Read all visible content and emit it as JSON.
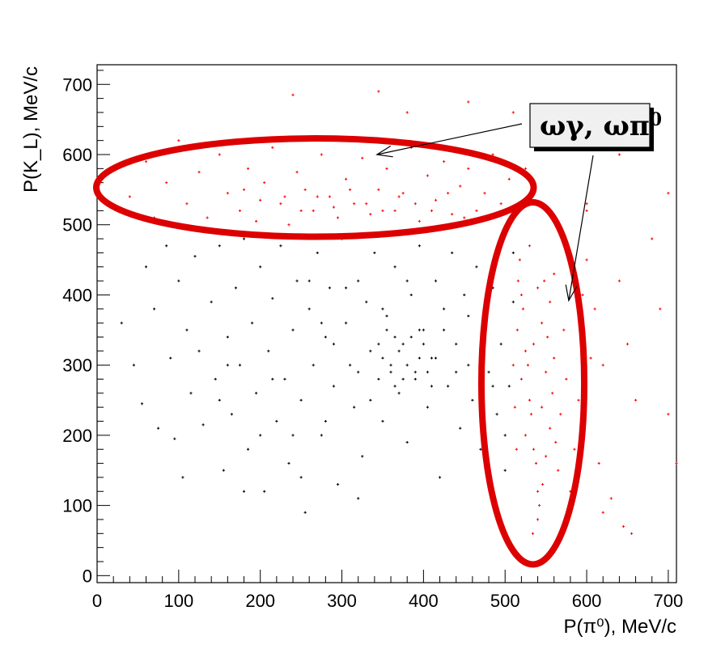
{
  "chart_data": {
    "type": "scatter",
    "xlabel": "P(π⁰), MeV/c",
    "ylabel": "P(K_L), MeV/c",
    "xlim": [
      0,
      710
    ],
    "ylim": [
      -10,
      728
    ],
    "x_ticks": [
      "0",
      "100",
      "200",
      "300",
      "400",
      "500",
      "600",
      "700"
    ],
    "y_ticks": [
      "0",
      "100",
      "200",
      "300",
      "400",
      "500",
      "600",
      "700"
    ],
    "grid": false,
    "series": [
      {
        "color": "#000000",
        "points": [
          [
            30,
            360
          ],
          [
            45,
            300
          ],
          [
            55,
            245
          ],
          [
            60,
            440
          ],
          [
            70,
            380
          ],
          [
            75,
            210
          ],
          [
            85,
            470
          ],
          [
            90,
            310
          ],
          [
            95,
            195
          ],
          [
            100,
            420
          ],
          [
            110,
            350
          ],
          [
            115,
            260
          ],
          [
            120,
            455
          ],
          [
            125,
            320
          ],
          [
            130,
            215
          ],
          [
            140,
            390
          ],
          [
            145,
            280
          ],
          [
            150,
            470
          ],
          [
            155,
            150
          ],
          [
            160,
            340
          ],
          [
            165,
            230
          ],
          [
            170,
            410
          ],
          [
            175,
            300
          ],
          [
            180,
            480
          ],
          [
            185,
            180
          ],
          [
            190,
            360
          ],
          [
            195,
            260
          ],
          [
            200,
            440
          ],
          [
            205,
            120
          ],
          [
            210,
            320
          ],
          [
            215,
            395
          ],
          [
            220,
            220
          ],
          [
            225,
            470
          ],
          [
            230,
            280
          ],
          [
            235,
            160
          ],
          [
            240,
            350
          ],
          [
            245,
            420
          ],
          [
            250,
            250
          ],
          [
            255,
            90
          ],
          [
            260,
            380
          ],
          [
            265,
            300
          ],
          [
            270,
            460
          ],
          [
            275,
            200
          ],
          [
            280,
            340
          ],
          [
            285,
            410
          ],
          [
            290,
            270
          ],
          [
            295,
            130
          ],
          [
            300,
            480
          ],
          [
            305,
            360
          ],
          [
            310,
            300
          ],
          [
            315,
            240
          ],
          [
            320,
            420
          ],
          [
            325,
            170
          ],
          [
            330,
            390
          ],
          [
            335,
            320
          ],
          [
            340,
            460
          ],
          [
            345,
            280
          ],
          [
            350,
            220
          ],
          [
            355,
            370
          ],
          [
            360,
            300
          ],
          [
            365,
            440
          ],
          [
            370,
            260
          ],
          [
            375,
            330
          ],
          [
            380,
            190
          ],
          [
            385,
            400
          ],
          [
            390,
            290
          ],
          [
            395,
            470
          ],
          [
            400,
            350
          ],
          [
            405,
            240
          ],
          [
            410,
            310
          ],
          [
            415,
            420
          ],
          [
            420,
            140
          ],
          [
            425,
            380
          ],
          [
            430,
            270
          ],
          [
            435,
            460
          ],
          [
            440,
            330
          ],
          [
            445,
            210
          ],
          [
            450,
            400
          ],
          [
            455,
            300
          ],
          [
            460,
            250
          ],
          [
            465,
            440
          ],
          [
            470,
            180
          ],
          [
            475,
            350
          ],
          [
            480,
            290
          ],
          [
            485,
            410
          ],
          [
            490,
            230
          ],
          [
            495,
            330
          ],
          [
            500,
            150
          ],
          [
            505,
            270
          ],
          [
            510,
            390
          ],
          [
            260,
            420
          ],
          [
            275,
            360
          ],
          [
            290,
            330
          ],
          [
            305,
            410
          ],
          [
            320,
            290
          ],
          [
            335,
            250
          ],
          [
            350,
            380
          ],
          [
            365,
            340
          ],
          [
            380,
            420
          ],
          [
            395,
            310
          ],
          [
            410,
            270
          ],
          [
            425,
            350
          ],
          [
            440,
            290
          ],
          [
            455,
            370
          ],
          [
            470,
            320
          ],
          [
            485,
            270
          ],
          [
            350,
            310
          ],
          [
            360,
            290
          ],
          [
            370,
            320
          ],
          [
            380,
            300
          ],
          [
            390,
            280
          ],
          [
            400,
            330
          ],
          [
            345,
            330
          ],
          [
            385,
            340
          ],
          [
            375,
            280
          ],
          [
            395,
            350
          ],
          [
            405,
            290
          ],
          [
            415,
            310
          ],
          [
            365,
            270
          ],
          [
            355,
            350
          ],
          [
            150,
            250
          ],
          [
            200,
            200
          ],
          [
            240,
            200
          ],
          [
            280,
            220
          ],
          [
            160,
            300
          ],
          [
            215,
            280
          ],
          [
            105,
            140
          ],
          [
            180,
            120
          ],
          [
            250,
            140
          ],
          [
            320,
            110
          ],
          [
            480,
            130
          ],
          [
            500,
            200
          ],
          [
            470,
            230
          ],
          [
            510,
            460
          ],
          [
            505,
            500
          ]
        ]
      },
      {
        "color": "#ff0000",
        "points": [
          [
            40,
            540
          ],
          [
            60,
            590
          ],
          [
            70,
            510
          ],
          [
            85,
            560
          ],
          [
            100,
            620
          ],
          [
            110,
            530
          ],
          [
            125,
            575
          ],
          [
            135,
            510
          ],
          [
            150,
            600
          ],
          [
            160,
            545
          ],
          [
            175,
            520
          ],
          [
            185,
            580
          ],
          [
            195,
            505
          ],
          [
            205,
            560
          ],
          [
            215,
            610
          ],
          [
            225,
            530
          ],
          [
            235,
            500
          ],
          [
            245,
            575
          ],
          [
            255,
            550
          ],
          [
            265,
            520
          ],
          [
            275,
            600
          ],
          [
            285,
            540
          ],
          [
            295,
            510
          ],
          [
            305,
            565
          ],
          [
            315,
            530
          ],
          [
            325,
            595
          ],
          [
            335,
            515
          ],
          [
            345,
            550
          ],
          [
            355,
            580
          ],
          [
            365,
            520
          ],
          [
            375,
            545
          ],
          [
            385,
            610
          ],
          [
            395,
            505
          ],
          [
            405,
            570
          ],
          [
            415,
            535
          ],
          [
            425,
            590
          ],
          [
            435,
            515
          ],
          [
            445,
            555
          ],
          [
            455,
            580
          ],
          [
            465,
            520
          ],
          [
            475,
            545
          ],
          [
            485,
            600
          ],
          [
            495,
            530
          ],
          [
            505,
            565
          ],
          [
            515,
            515
          ],
          [
            525,
            580
          ],
          [
            230,
            540
          ],
          [
            250,
            520
          ],
          [
            270,
            540
          ],
          [
            290,
            525
          ],
          [
            310,
            550
          ],
          [
            330,
            530
          ],
          [
            350,
            520
          ],
          [
            370,
            540
          ],
          [
            390,
            530
          ],
          [
            410,
            520
          ],
          [
            430,
            545
          ],
          [
            450,
            510
          ],
          [
            200,
            535
          ],
          [
            180,
            550
          ],
          [
            240,
            685
          ],
          [
            345,
            690
          ],
          [
            380,
            660
          ],
          [
            455,
            675
          ],
          [
            510,
            660
          ],
          [
            565,
            610
          ],
          [
            600,
            530
          ],
          [
            640,
            600
          ],
          [
            700,
            545
          ],
          [
            680,
            480
          ],
          [
            520,
            400
          ],
          [
            525,
            320
          ],
          [
            530,
            250
          ],
          [
            535,
            180
          ],
          [
            540,
            120
          ],
          [
            545,
            360
          ],
          [
            550,
            290
          ],
          [
            555,
            210
          ],
          [
            560,
            430
          ],
          [
            565,
            150
          ],
          [
            518,
            450
          ],
          [
            522,
            380
          ],
          [
            528,
            300
          ],
          [
            532,
            230
          ],
          [
            538,
            160
          ],
          [
            542,
            100
          ],
          [
            548,
            420
          ],
          [
            552,
            340
          ],
          [
            558,
            260
          ],
          [
            562,
            190
          ],
          [
            515,
            350
          ],
          [
            520,
            280
          ],
          [
            525,
            200
          ],
          [
            530,
            470
          ],
          [
            535,
            330
          ],
          [
            540,
            410
          ],
          [
            545,
            240
          ],
          [
            550,
            170
          ],
          [
            555,
            390
          ],
          [
            560,
            310
          ],
          [
            568,
            230
          ],
          [
            572,
            350
          ],
          [
            575,
            280
          ],
          [
            510,
            300
          ],
          [
            512,
            240
          ],
          [
            514,
            180
          ],
          [
            516,
            420
          ],
          [
            534,
            60
          ],
          [
            540,
            80
          ],
          [
            546,
            130
          ],
          [
            600,
            450
          ],
          [
            610,
            380
          ],
          [
            620,
            300
          ],
          [
            640,
            420
          ],
          [
            650,
            330
          ],
          [
            660,
            250
          ],
          [
            690,
            380
          ],
          [
            700,
            230
          ],
          [
            710,
            160
          ],
          [
            615,
            160
          ],
          [
            630,
            110
          ],
          [
            645,
            70
          ],
          [
            655,
            60
          ],
          [
            620,
            90
          ],
          [
            600,
            520
          ],
          [
            590,
            250
          ],
          [
            585,
            180
          ],
          [
            580,
            120
          ],
          [
            595,
            400
          ],
          [
            605,
            310
          ]
        ]
      }
    ],
    "ellipse_color": "#dd0000",
    "ellipses": [
      {
        "cx": 267,
        "cy": 553,
        "rx": 268,
        "ry": 70
      },
      {
        "cx": 534,
        "cy": 274,
        "rx": 63,
        "ry": 258
      }
    ],
    "annotation": {
      "text_base": "ωγ, ωπ",
      "text_sup": "0",
      "arrow_targets": [
        [
          343,
          600
        ],
        [
          578,
          392
        ]
      ]
    }
  }
}
